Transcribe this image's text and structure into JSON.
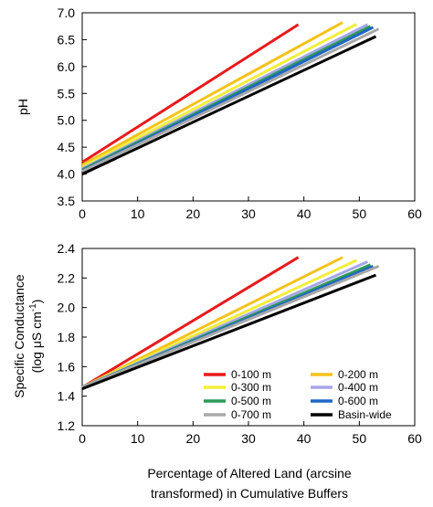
{
  "colors": {
    "0-100 m": "#e8191b",
    "0-200 m": "#f5c21b",
    "0-300 m": "#f2ee3a",
    "0-400 m": "#a6a6e8",
    "0-500 m": "#2f9a55",
    "0-600 m": "#1f66c6",
    "0-700 m": "#a8a8a8",
    "Basin-wide": "#000000"
  },
  "chart_data": [
    {
      "type": "line",
      "xlabel": "",
      "ylabel": "pH",
      "xlim": [
        0,
        60
      ],
      "ylim": [
        3.5,
        7.0
      ],
      "xticks": [
        "0",
        "10",
        "20",
        "30",
        "40",
        "50",
        "60"
      ],
      "yticks": [
        "3.5",
        "4.0",
        "4.5",
        "5.0",
        "5.5",
        "6.0",
        "6.5",
        "7.0"
      ],
      "series": [
        {
          "name": "0-100 m",
          "x": [
            0,
            39
          ],
          "y": [
            4.22,
            6.78
          ]
        },
        {
          "name": "0-200 m",
          "x": [
            0,
            47
          ],
          "y": [
            4.17,
            6.82
          ]
        },
        {
          "name": "0-300 m",
          "x": [
            0,
            49.5
          ],
          "y": [
            4.13,
            6.79
          ]
        },
        {
          "name": "0-400 m",
          "x": [
            0,
            51.5
          ],
          "y": [
            4.1,
            6.78
          ]
        },
        {
          "name": "0-500 m",
          "x": [
            0,
            52
          ],
          "y": [
            4.08,
            6.75
          ]
        },
        {
          "name": "0-600 m",
          "x": [
            0,
            52.5
          ],
          "y": [
            4.06,
            6.73
          ]
        },
        {
          "name": "0-700 m",
          "x": [
            0,
            53.5
          ],
          "y": [
            4.05,
            6.7
          ]
        },
        {
          "name": "Basin-wide",
          "x": [
            0,
            53
          ],
          "y": [
            4.0,
            6.56
          ]
        }
      ]
    },
    {
      "type": "line",
      "xlabel": "Percentage of Altered Land (arcsine transformed) in Cumulative Buffers",
      "xlabel_lines": [
        "Percentage of Altered Land (arcsine",
        "transformed) in Cumulative Buffers"
      ],
      "ylabel": "Specific Conductance (log μS cm⁻¹)",
      "ylabel_lines": [
        "Specific Conductance",
        "(log μS cm",
        "-1",
        ")"
      ],
      "xlim": [
        0,
        60
      ],
      "ylim": [
        1.2,
        2.4
      ],
      "xticks": [
        "0",
        "10",
        "20",
        "30",
        "40",
        "50",
        "60"
      ],
      "yticks": [
        "1.2",
        "1.4",
        "1.6",
        "1.8",
        "2.0",
        "2.2",
        "2.4"
      ],
      "legend": "bottom-right",
      "series": [
        {
          "name": "0-100 m",
          "x": [
            0,
            39
          ],
          "y": [
            1.46,
            2.34
          ]
        },
        {
          "name": "0-200 m",
          "x": [
            0,
            47
          ],
          "y": [
            1.46,
            2.34
          ]
        },
        {
          "name": "0-300 m",
          "x": [
            0,
            49.5
          ],
          "y": [
            1.46,
            2.32
          ]
        },
        {
          "name": "0-400 m",
          "x": [
            0,
            51.5
          ],
          "y": [
            1.46,
            2.31
          ]
        },
        {
          "name": "0-500 m",
          "x": [
            0,
            52
          ],
          "y": [
            1.46,
            2.29
          ]
        },
        {
          "name": "0-600 m",
          "x": [
            0,
            52.5
          ],
          "y": [
            1.46,
            2.28
          ]
        },
        {
          "name": "0-700 m",
          "x": [
            0,
            53.5
          ],
          "y": [
            1.46,
            2.28
          ]
        },
        {
          "name": "Basin-wide",
          "x": [
            0,
            53
          ],
          "y": [
            1.45,
            2.22
          ]
        }
      ]
    }
  ]
}
